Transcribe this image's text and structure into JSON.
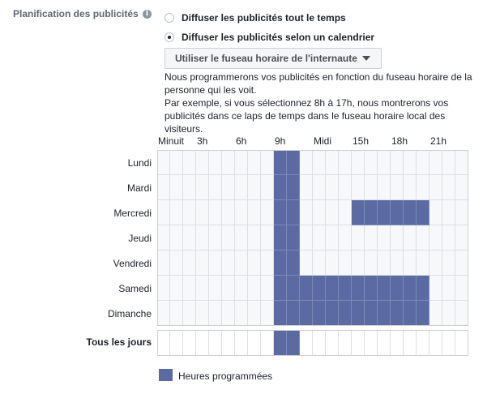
{
  "section": {
    "label": "Planification des publicités",
    "info_icon": "info-icon"
  },
  "radio_options": [
    {
      "label": "Diffuser les publicités tout le temps",
      "checked": false
    },
    {
      "label": "Diffuser les publicités selon un calendrier",
      "checked": true
    }
  ],
  "timezone_button": {
    "label": "Utiliser le fuseau horaire de l'internaute",
    "icon": "caret-down-icon"
  },
  "help_text": [
    "Nous programmerons vos publicités en fonction du fuseau horaire de la personne qui les voit.",
    "Par exemple, si vous sélectionnez 8h à 17h, nous montrerons vos publicités dans ce laps de temps dans le fuseau horaire local des visiteurs."
  ],
  "schedule": {
    "hour_labels": [
      {
        "label": "Minuit",
        "hour": 0
      },
      {
        "label": "3h",
        "hour": 3
      },
      {
        "label": "6h",
        "hour": 6
      },
      {
        "label": "9h",
        "hour": 9
      },
      {
        "label": "Midi",
        "hour": 12
      },
      {
        "label": "15h",
        "hour": 15
      },
      {
        "label": "18h",
        "hour": 18
      },
      {
        "label": "21h",
        "hour": 21
      }
    ],
    "days": [
      {
        "name": "Lundi",
        "ranges": [
          [
            9,
            11
          ]
        ]
      },
      {
        "name": "Mardi",
        "ranges": [
          [
            9,
            11
          ]
        ]
      },
      {
        "name": "Mercredi",
        "ranges": [
          [
            9,
            11
          ],
          [
            15,
            21
          ]
        ]
      },
      {
        "name": "Jeudi",
        "ranges": [
          [
            9,
            11
          ]
        ]
      },
      {
        "name": "Vendredi",
        "ranges": [
          [
            9,
            11
          ]
        ]
      },
      {
        "name": "Samedi",
        "ranges": [
          [
            9,
            21
          ]
        ]
      },
      {
        "name": "Dimanche",
        "ranges": [
          [
            9,
            21
          ]
        ]
      }
    ],
    "all_days": {
      "name": "Tous les jours",
      "ranges": [
        [
          9,
          11
        ]
      ]
    },
    "on_color": "#5b6aa3",
    "off_color": "#f7f8fa"
  },
  "legend": {
    "label": "Heures programmées",
    "color": "#5b6aa3"
  }
}
